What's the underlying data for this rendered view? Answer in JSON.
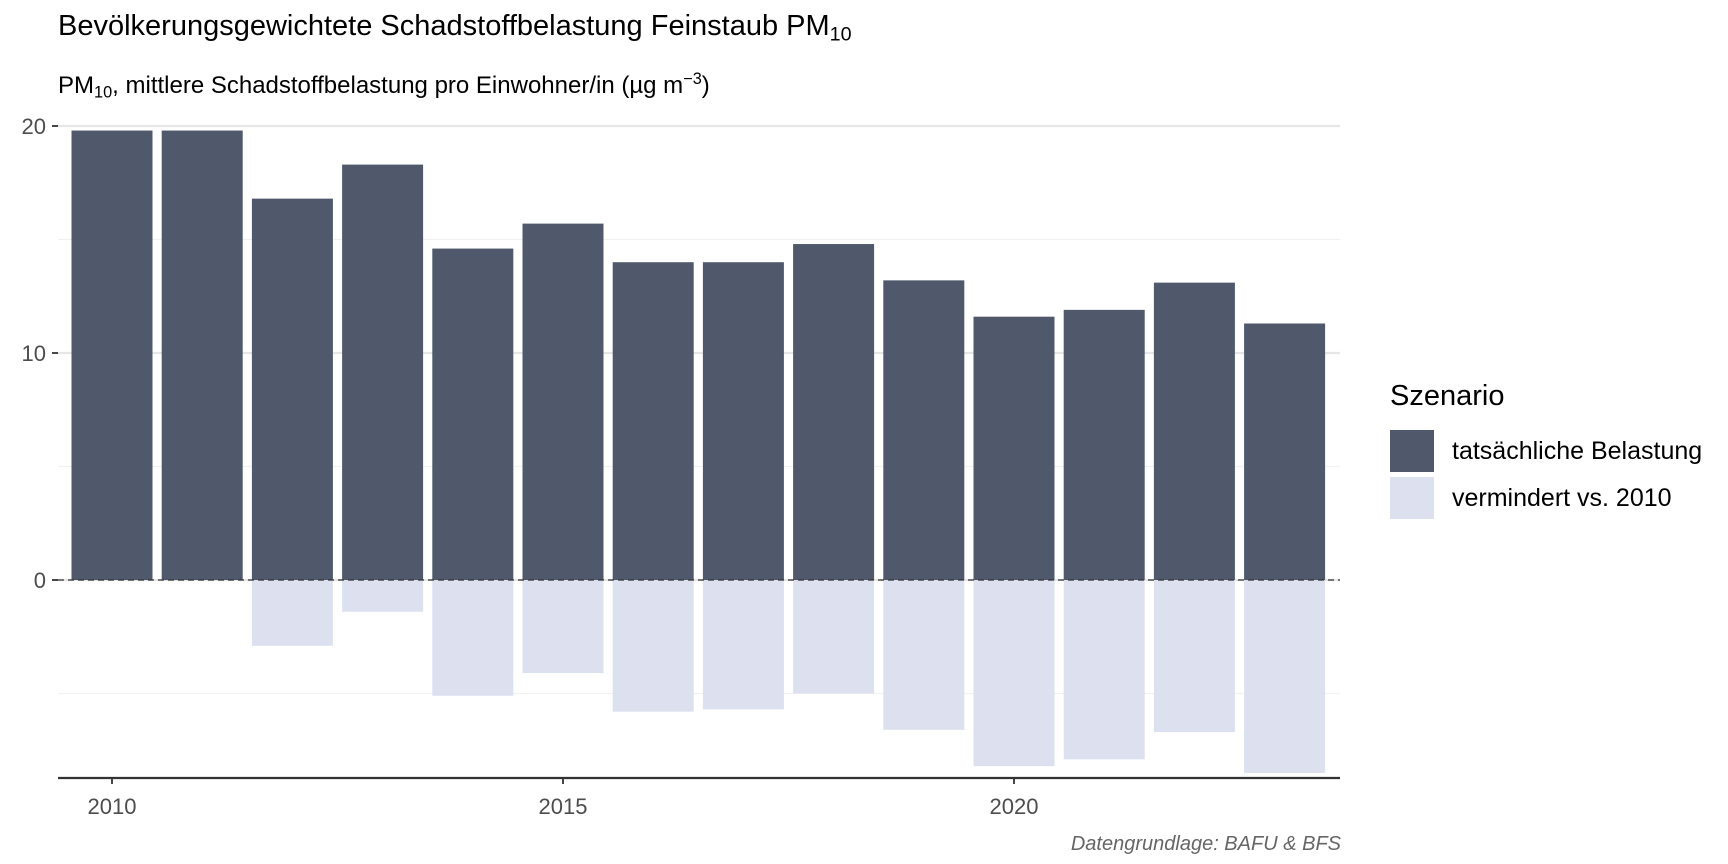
{
  "title": {
    "text": "Bevölkerungsgewichtete Schadstoffbelastung Feinstaub PM",
    "sub": "10"
  },
  "subtitle": {
    "pre": "PM",
    "sub": "10",
    "mid": ", mittlere Schadstoffbelastung pro Einwohner/in (µg m",
    "sup": "−3",
    "post": ")"
  },
  "caption": "Datengrundlage: BAFU & BFS",
  "legend": {
    "title": "Szenario",
    "items": [
      {
        "label": "tatsächliche Belastung",
        "color": "#4f596b"
      },
      {
        "label": "vermindert vs. 2010",
        "color": "#dde1ef"
      }
    ]
  },
  "chart_data": {
    "type": "bar",
    "stacked": true,
    "x": [
      2010,
      2011,
      2012,
      2013,
      2014,
      2015,
      2016,
      2017,
      2018,
      2019,
      2020,
      2021,
      2022,
      2023
    ],
    "series": [
      {
        "name": "tatsächliche Belastung",
        "color": "#4f596b",
        "values": [
          19.8,
          19.8,
          16.8,
          18.3,
          14.6,
          15.7,
          14.0,
          14.0,
          14.8,
          13.2,
          11.6,
          11.9,
          13.1,
          11.3
        ]
      },
      {
        "name": "vermindert vs. 2010",
        "color": "#dde1ef",
        "values": [
          0,
          0,
          -2.9,
          -1.4,
          -5.1,
          -4.1,
          -5.8,
          -5.7,
          -5.0,
          -6.6,
          -8.2,
          -7.9,
          -6.7,
          -8.5
        ]
      }
    ],
    "x_ticks": [
      "2010",
      "2015",
      "2020"
    ],
    "y_ticks": [
      "0",
      "10",
      "20"
    ],
    "ylim": [
      -8.8,
      20.5
    ],
    "zero_line": "dashed",
    "grid": true,
    "legend_position": "right"
  }
}
